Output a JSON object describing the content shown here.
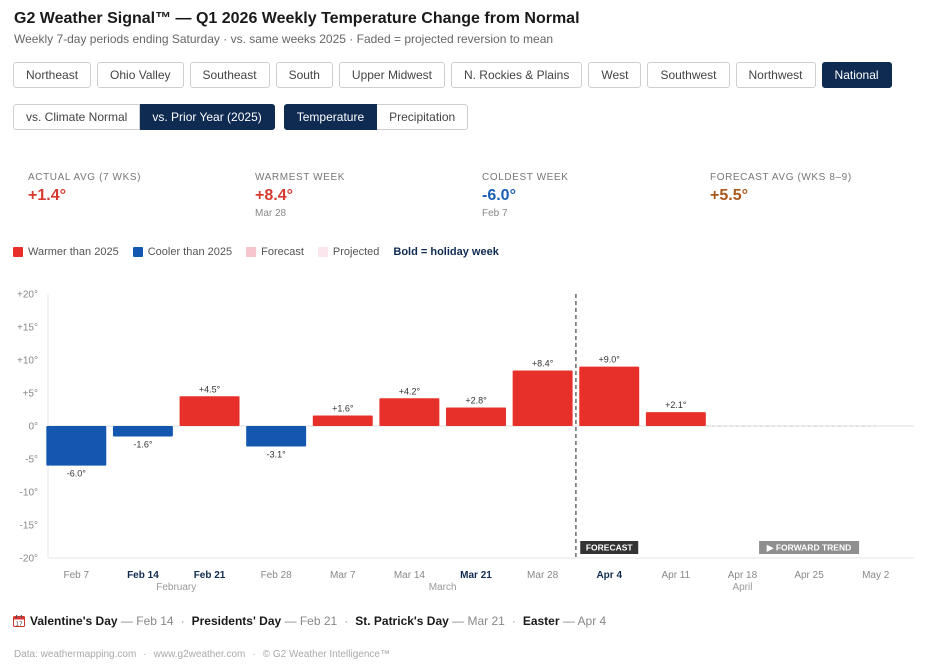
{
  "header": {
    "title": "G2 Weather Signal™ — Q1 2026 Weekly Temperature Change from Normal",
    "subtitle": "Weekly 7-day periods ending Saturday · vs. same weeks 2025 · Faded = projected reversion to mean"
  },
  "regions": [
    "Northeast",
    "Ohio Valley",
    "Southeast",
    "South",
    "Upper Midwest",
    "N. Rockies & Plains",
    "West",
    "Southwest",
    "Northwest",
    "National"
  ],
  "active_region": "National",
  "comparison": {
    "options": [
      "vs. Climate Normal",
      "vs. Prior Year (2025)"
    ],
    "active": 1
  },
  "metric": {
    "options": [
      "Temperature",
      "Precipitation"
    ],
    "active": 0
  },
  "stats": [
    {
      "label": "ACTUAL AVG (7 WKS)",
      "value": "+1.4°",
      "sub": "",
      "color": "#d63a2f"
    },
    {
      "label": "WARMEST WEEK",
      "value": "+8.4°",
      "sub": "Mar 28",
      "color": "#d63a2f"
    },
    {
      "label": "COLDEST WEEK",
      "value": "-6.0°",
      "sub": "Feb 7",
      "color": "#1a5fb4"
    },
    {
      "label": "FORECAST AVG (WKS 8–9)",
      "value": "+5.5°",
      "sub": "",
      "color": "#a8581a"
    }
  ],
  "legend": {
    "items": [
      {
        "label": "Warmer than 2025",
        "color": "#e8302a"
      },
      {
        "label": "Cooler than 2025",
        "color": "#1457b0"
      },
      {
        "label": "Forecast",
        "color": "#f6c6cc"
      },
      {
        "label": "Projected",
        "color": "#fbe6ee"
      }
    ],
    "bold_note": "Bold = holiday week"
  },
  "chart_data": {
    "type": "bar",
    "ylim": [
      -20,
      20
    ],
    "yticks": [
      20,
      15,
      10,
      5,
      0,
      -5,
      -10,
      -15,
      -20
    ],
    "ytick_labels": [
      "+20°",
      "+15°",
      "+10°",
      "+5°",
      "0°",
      "-5°",
      "-10°",
      "-15°",
      "-20°"
    ],
    "categories": [
      "Feb 7",
      "Feb 14",
      "Feb 21",
      "Feb 28",
      "Mar 7",
      "Mar 14",
      "Mar 21",
      "Mar 28",
      "Apr 4",
      "Apr 11",
      "Apr 18",
      "Apr 25",
      "May 2"
    ],
    "holiday_weeks": [
      "Feb 14",
      "Feb 21",
      "Mar 21",
      "Apr 4"
    ],
    "values": [
      -6.0,
      -1.6,
      4.5,
      -3.1,
      1.6,
      4.2,
      2.8,
      8.4,
      9.0,
      2.1,
      null,
      null,
      null
    ],
    "value_labels": [
      "-6.0°",
      "-1.6°",
      "+4.5°",
      "-3.1°",
      "+1.6°",
      "+4.2°",
      "+2.8°",
      "+8.4°",
      "+9.0°",
      "+2.1°",
      "",
      "",
      ""
    ],
    "warm_color": "#e8302a",
    "cool_color": "#1457b0",
    "months": [
      {
        "label": "February",
        "categories": [
          "Feb 7",
          "Feb 28"
        ]
      },
      {
        "label": "March",
        "categories": [
          "Mar 7",
          "Mar 28"
        ]
      },
      {
        "label": "April",
        "categories": [
          "Apr 4",
          "May 2"
        ]
      }
    ],
    "forecast_divider_after": "Mar 28",
    "projected_from": "Apr 11",
    "annotations": [
      {
        "text": "FORECAST",
        "category": "Apr 4"
      },
      {
        "text": "▶ FORWARD TREND",
        "category": "Apr 25"
      }
    ]
  },
  "holidays": [
    {
      "name": "Valentine's Day",
      "date": "— Feb 14"
    },
    {
      "name": "Presidents' Day",
      "date": "— Feb 21"
    },
    {
      "name": "St. Patrick's Day",
      "date": "— Mar 21"
    },
    {
      "name": "Easter",
      "date": "— Apr 4"
    }
  ],
  "footer": [
    "Data: weathermapping.com",
    "www.g2weather.com",
    "© G2 Weather Intelligence™"
  ]
}
